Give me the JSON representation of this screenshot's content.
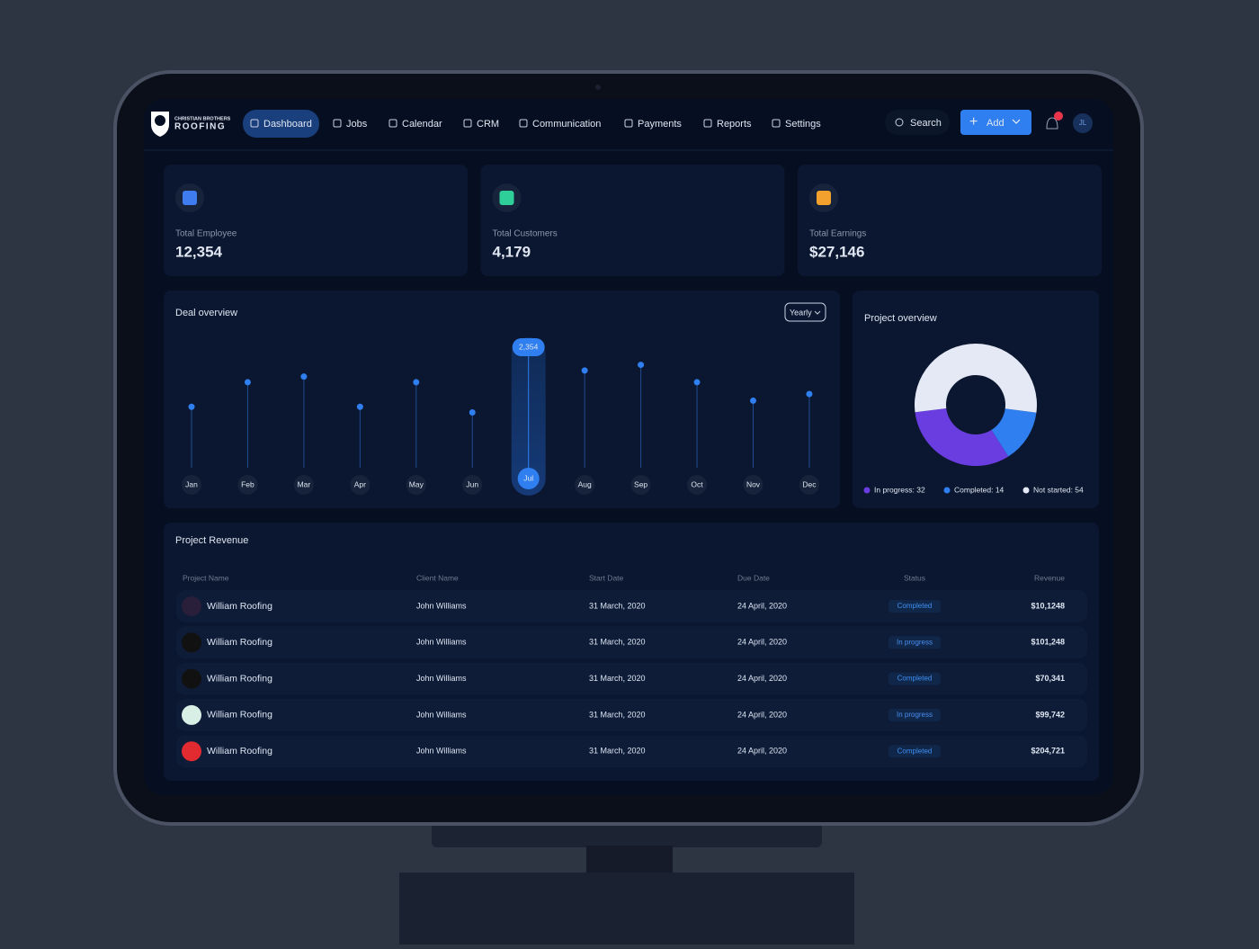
{
  "header": {
    "logo": [
      "CHRISTIAN BROTHERS",
      "ROOFING"
    ],
    "nav": [
      "Dashboard",
      "Jobs",
      "Calendar",
      "CRM",
      "Communication",
      "Payments",
      "Reports",
      "Settings"
    ],
    "search": "Search",
    "add": "Add",
    "avatar": "JL"
  },
  "stats": [
    {
      "label": "Total Employee",
      "value": "12,354"
    },
    {
      "label": "Total Customers",
      "value": "4,179"
    },
    {
      "label": "Total Earnings",
      "value": "$27,146"
    }
  ],
  "chart_data": [
    {
      "type": "lollipop",
      "title": "Deal overview",
      "filter": "Yearly",
      "categories": [
        "Jan",
        "Feb",
        "Mar",
        "Apr",
        "May",
        "Jun",
        "Jul",
        "Aug",
        "Sep",
        "Oct",
        "Nov",
        "Dec"
      ],
      "values": [
        1190,
        1670,
        1780,
        1190,
        1670,
        1080,
        2354,
        1900,
        2010,
        1670,
        1310,
        1440
      ],
      "value_labels": [
        null,
        null,
        null,
        null,
        null,
        null,
        "2,354",
        null,
        null,
        null,
        null,
        null
      ],
      "color": "#2f7ff0",
      "highlight": 6
    },
    {
      "type": "donut",
      "title": "Project overview",
      "values": [
        32,
        14,
        54
      ],
      "value_labels": [
        "In progress: 32",
        "Completed: 14",
        "Not started: 54"
      ],
      "colors": [
        "#6a3de0",
        "#2f7ff0",
        "#e4e9f5"
      ]
    }
  ],
  "table": {
    "title": "Project Revenue",
    "columns": [
      "Project Name",
      "Client Name",
      "Start Date",
      "Due Date",
      "Status",
      "Revenue"
    ],
    "rows": [
      [
        "William Roofing",
        "John Williams",
        "31 March, 2020",
        "24 April, 2020",
        "Completed",
        "$10,1248"
      ],
      [
        "William Roofing",
        "John Williams",
        "31 March, 2020",
        "24 April, 2020",
        "In progress",
        "$101,248"
      ],
      [
        "William Roofing",
        "John Williams",
        "31 March, 2020",
        "24 April, 2020",
        "Completed",
        "$70,341"
      ],
      [
        "William Roofing",
        "John Williams",
        "31 March, 2020",
        "24 April, 2020",
        "In progress",
        "$99,742"
      ],
      [
        "William Roofing",
        "John Williams",
        "31 March, 2020",
        "24 April, 2020",
        "Completed",
        "$204,721"
      ]
    ]
  }
}
